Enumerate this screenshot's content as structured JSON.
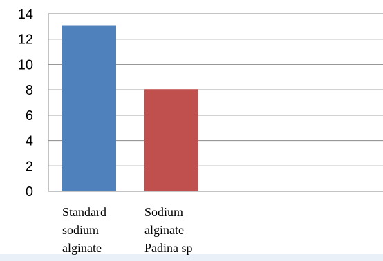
{
  "chart_data": {
    "type": "bar",
    "categories": [
      [
        "Standard",
        "sodium",
        "alginate"
      ],
      [
        "Sodium",
        "alginate",
        "Padina sp"
      ]
    ],
    "values": [
      13.1,
      8.05
    ],
    "colors": [
      "#4f81bd",
      "#c0504d"
    ],
    "ylim": [
      0,
      14
    ],
    "yticks": [
      "0",
      "2",
      "4",
      "6",
      "8",
      "10",
      "12",
      "14"
    ],
    "grid": true,
    "title": "",
    "xlabel": "",
    "ylabel": ""
  }
}
